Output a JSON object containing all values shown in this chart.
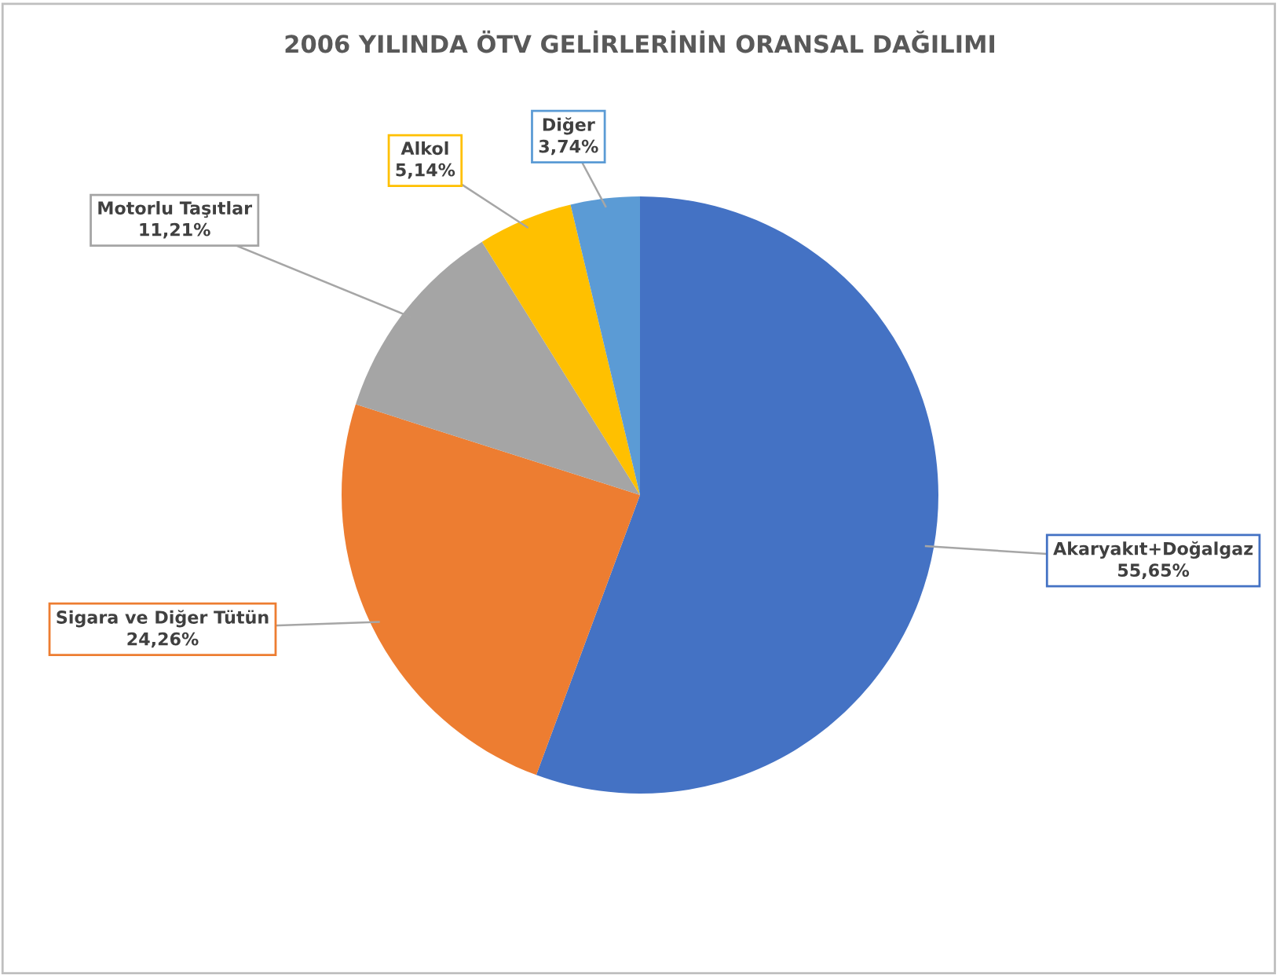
{
  "chart_data": {
    "type": "pie",
    "title": "2006 YILINDA ÖTV GELİRLERİNİN ORANSAL DAĞILIMI",
    "categories": [
      "Akaryakıt+Doğalgaz",
      "Sigara ve Diğer Tütün",
      "Motorlu Taşıtlar",
      "Alkol",
      "Diğer"
    ],
    "values": [
      55.65,
      24.26,
      11.21,
      5.14,
      3.74
    ],
    "colors": [
      "#4472c4",
      "#ed7d31",
      "#a5a5a5",
      "#ffc000",
      "#5b9bd5"
    ],
    "value_labels": [
      "55,65%",
      "24,26%",
      "11,21%",
      "5,14%",
      "3,74%"
    ]
  }
}
